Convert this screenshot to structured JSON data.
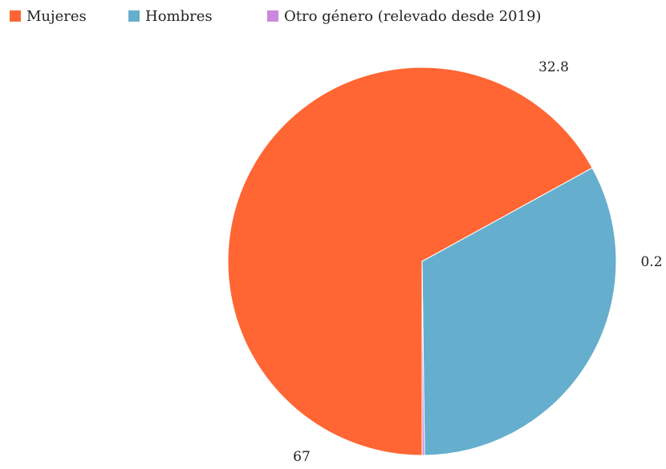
{
  "chart_data": {
    "type": "pie",
    "title": "",
    "legend_position": "top-left",
    "start_angle_deg": 90,
    "direction": "clockwise",
    "slices": [
      {
        "label": "Mujeres",
        "value": 67,
        "display": "67",
        "color": "#ff6633"
      },
      {
        "label": "Hombres",
        "value": 32.8,
        "display": "32.8",
        "color": "#66aecd"
      },
      {
        "label": "Otro género (relevado desde 2019)",
        "value": 0.2,
        "display": "0.2",
        "color": "#cc88dd"
      }
    ]
  }
}
